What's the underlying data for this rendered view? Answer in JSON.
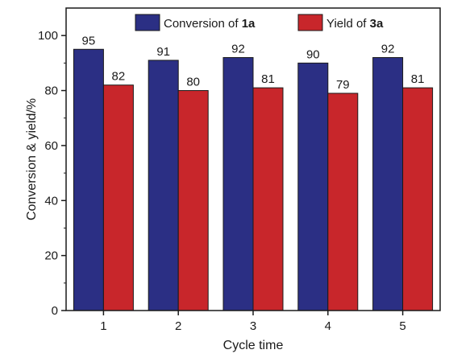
{
  "chart_data": {
    "type": "bar",
    "categories": [
      "1",
      "2",
      "3",
      "4",
      "5"
    ],
    "series": [
      {
        "name_prefix": "Conversion of ",
        "name_bold": "1a",
        "values": [
          95,
          91,
          92,
          90,
          92
        ],
        "color": "#2b2f84"
      },
      {
        "name_prefix": "Yield of ",
        "name_bold": "3a",
        "values": [
          82,
          80,
          81,
          79,
          81
        ],
        "color": "#c8262b"
      }
    ],
    "xlabel": "Cycle time",
    "ylabel": "Conversion & yield/%",
    "ylim": [
      0,
      110
    ],
    "yticks": [
      0,
      20,
      40,
      60,
      80,
      100
    ],
    "legend_position": "top-right",
    "grid": false
  }
}
